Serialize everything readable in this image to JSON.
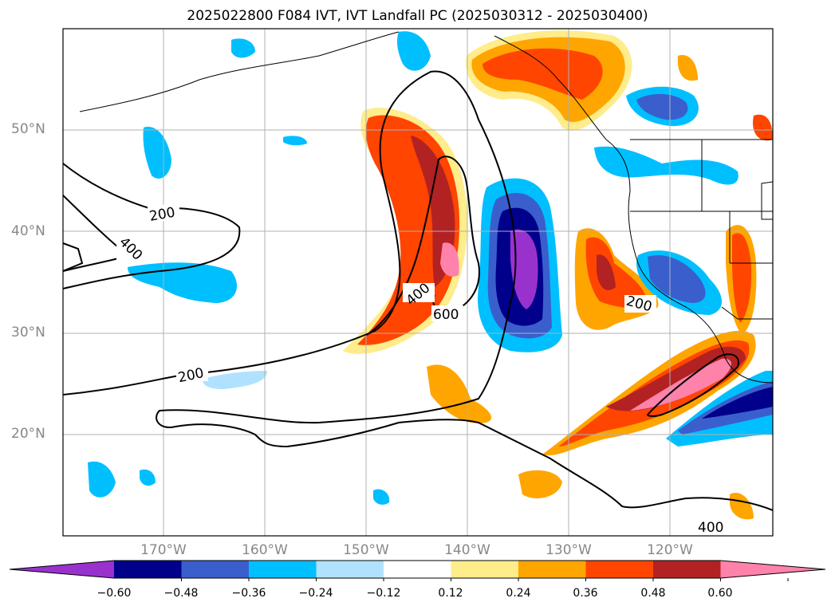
{
  "title": "2025022800 F084 IVT, IVT Landfall PC (2025030312 - 2025030400)",
  "lat_labels": [
    "50°N",
    "40°N",
    "30°N",
    "20°N"
  ],
  "lon_labels": [
    "170°W",
    "160°W",
    "150°W",
    "140°W",
    "130°W",
    "120°W"
  ],
  "contour_labels": [
    "200",
    "400",
    "200",
    "400",
    "600",
    "200",
    "400"
  ],
  "colorbar": {
    "ticks": [
      "−0.60",
      "−0.48",
      "−0.36",
      "−0.24",
      "−0.12",
      "0.12",
      "0.24",
      "0.36",
      "0.48",
      "0.60"
    ],
    "colors": [
      "#9932cc",
      "#00008b",
      "#3a5fcd",
      "#00bfff",
      "#b0e2ff",
      "#ffffff",
      "#ffec8b",
      "#ffa500",
      "#ff4500",
      "#b22222",
      "#ff82ab"
    ]
  }
}
